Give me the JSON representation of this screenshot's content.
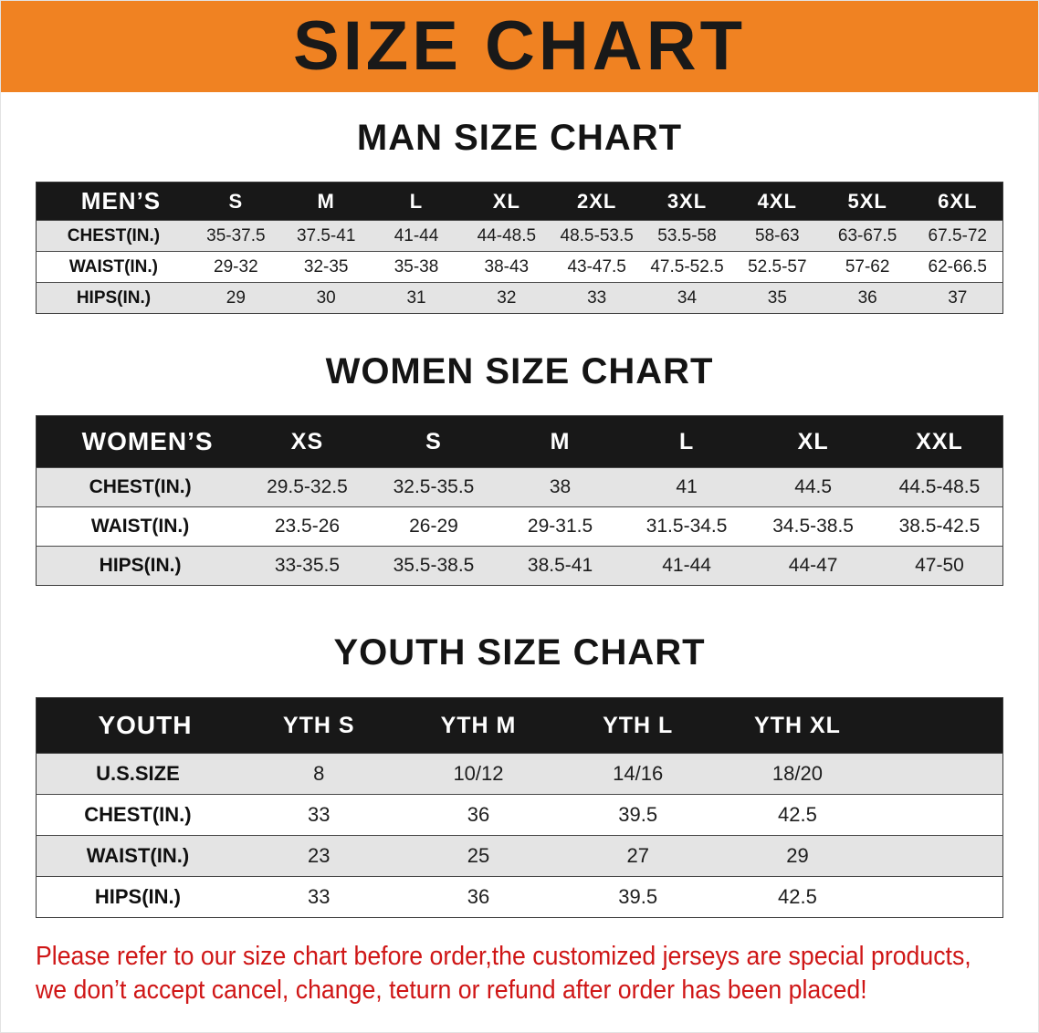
{
  "banner": {
    "title": "SIZE CHART"
  },
  "sections": [
    {
      "heading": "MAN SIZE CHART",
      "table": {
        "label": "MEN’S",
        "sizes": [
          "S",
          "M",
          "L",
          "XL",
          "2XL",
          "3XL",
          "4XL",
          "5XL",
          "6XL"
        ],
        "rows": [
          {
            "label": "CHEST(IN.)",
            "values": [
              "35-37.5",
              "37.5-41",
              "41-44",
              "44-48.5",
              "48.5-53.5",
              "53.5-58",
              "58-63",
              "63-67.5",
              "67.5-72"
            ]
          },
          {
            "label": "WAIST(IN.)",
            "values": [
              "29-32",
              "32-35",
              "35-38",
              "38-43",
              "43-47.5",
              "47.5-52.5",
              "52.5-57",
              "57-62",
              "62-66.5"
            ]
          },
          {
            "label": "HIPS(IN.)",
            "values": [
              "29",
              "30",
              "31",
              "32",
              "33",
              "34",
              "35",
              "36",
              "37"
            ]
          }
        ]
      }
    },
    {
      "heading": "WOMEN SIZE CHART",
      "table": {
        "label": "WOMEN’S",
        "sizes": [
          "XS",
          "S",
          "M",
          "L",
          "XL",
          "XXL"
        ],
        "rows": [
          {
            "label": "CHEST(IN.)",
            "values": [
              "29.5-32.5",
              "32.5-35.5",
              "38",
              "41",
              "44.5",
              "44.5-48.5"
            ]
          },
          {
            "label": "WAIST(IN.)",
            "values": [
              "23.5-26",
              "26-29",
              "29-31.5",
              "31.5-34.5",
              "34.5-38.5",
              "38.5-42.5"
            ]
          },
          {
            "label": "HIPS(IN.)",
            "values": [
              "33-35.5",
              "35.5-38.5",
              "38.5-41",
              "41-44",
              "44-47",
              "47-50"
            ]
          }
        ]
      }
    },
    {
      "heading": "YOUTH SIZE CHART",
      "table": {
        "label": "YOUTH",
        "sizes": [
          "YTH S",
          "YTH M",
          "YTH L",
          "YTH XL"
        ],
        "rows": [
          {
            "label": "U.S.SIZE",
            "values": [
              "8",
              "10/12",
              "14/16",
              "18/20"
            ]
          },
          {
            "label": "CHEST(IN.)",
            "values": [
              "33",
              "36",
              "39.5",
              "42.5"
            ]
          },
          {
            "label": "WAIST(IN.)",
            "values": [
              "23",
              "25",
              "27",
              "29"
            ]
          },
          {
            "label": "HIPS(IN.)",
            "values": [
              "33",
              "36",
              "39.5",
              "42.5"
            ]
          }
        ]
      }
    }
  ],
  "footnote": {
    "line1": "Please refer to our size chart before order,the customized jerseys are special products,",
    "line2": "we don’t accept cancel, change, teturn or refund after order has been placed!"
  },
  "colors": {
    "banner_bg": "#f08222",
    "banner_text": "#191919",
    "table_header_bg": "#181818",
    "table_header_text": "#ffffff",
    "stripe_bg": "#e4e4e4",
    "footnote_color": "#cf1616"
  }
}
